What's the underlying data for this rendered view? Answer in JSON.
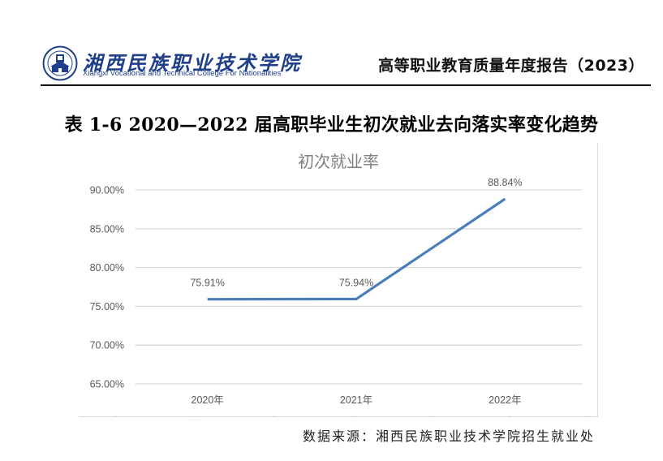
{
  "header": {
    "logo_name_cn": "湘西民族职业技术学院",
    "logo_name_en": "Xiangxi Vocational and Technical College For Nationalities",
    "report_title": "高等职业教育质量年度报告（2023）"
  },
  "table_title": "表 1-6 2020—2022 届高职毕业生初次就业去向落实率变化趋势",
  "source_note": "数据来源：湘西民族职业技术学院招生就业处",
  "colors": {
    "line": "#4a7ebb",
    "grid": "#d9d9d9",
    "axis_text": "#595959",
    "title_text": "#7f7f7f",
    "logo_blue": "#1f3f8a"
  },
  "chart_data": {
    "type": "line",
    "title": "初次就业率",
    "categories": [
      "2020年",
      "2021年",
      "2022年"
    ],
    "series": [
      {
        "name": "初次就业率",
        "values": [
          75.91,
          75.94,
          88.84
        ]
      }
    ],
    "data_labels": [
      "75.91%",
      "75.94%",
      "88.84%"
    ],
    "xlabel": "",
    "ylabel": "",
    "ylim": [
      65,
      90
    ],
    "yticks": [
      "65.00%",
      "70.00%",
      "75.00%",
      "80.00%",
      "85.00%",
      "90.00%"
    ],
    "grid": true,
    "legend": "none"
  }
}
